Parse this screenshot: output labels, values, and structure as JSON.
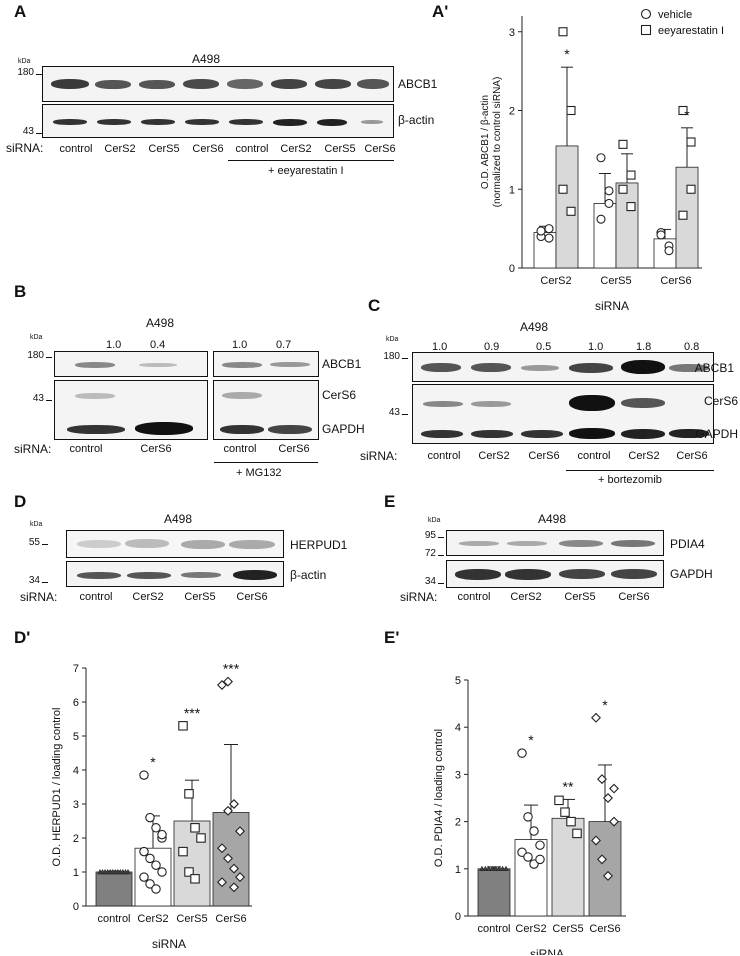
{
  "panels": {
    "A": {
      "label": "A",
      "cell": "A498",
      "kda": "kDa",
      "markers": [
        "180",
        "43"
      ],
      "proteins": [
        "ABCB1",
        "β-actin"
      ],
      "sirna_label": "siRNA:",
      "lanes": [
        "control",
        "CerS2",
        "CerS5",
        "CerS6",
        "control",
        "CerS2",
        "CerS5",
        "CerS6"
      ],
      "treatment": "+ eeyarestatin I"
    },
    "B": {
      "label": "B",
      "cell": "A498",
      "kda": "kDa",
      "markers": [
        "180",
        "43"
      ],
      "quant": [
        "1.0",
        "0.4",
        "1.0",
        "0.7"
      ],
      "proteins": [
        "ABCB1",
        "CerS6",
        "GAPDH"
      ],
      "sirna_label": "siRNA:",
      "lanes": [
        "control",
        "CerS6",
        "control",
        "CerS6"
      ],
      "treatment": "+ MG132"
    },
    "C": {
      "label": "C",
      "cell": "A498",
      "kda": "kDa",
      "markers": [
        "180",
        "43"
      ],
      "quant": [
        "1.0",
        "0.9",
        "0.5",
        "1.0",
        "1.8",
        "0.8"
      ],
      "proteins": [
        "ABCB1",
        "CerS6",
        "GAPDH"
      ],
      "sirna_label": "siRNA:",
      "lanes": [
        "control",
        "CerS2",
        "CerS6",
        "control",
        "CerS2",
        "CerS6"
      ],
      "treatment": "+ bortezomib"
    },
    "D": {
      "label": "D",
      "cell": "A498",
      "kda": "kDa",
      "markers": [
        "55",
        "34"
      ],
      "proteins": [
        "HERPUD1",
        "β-actin"
      ],
      "sirna_label": "siRNA:",
      "lanes": [
        "control",
        "CerS2",
        "CerS5",
        "CerS6"
      ]
    },
    "E": {
      "label": "E",
      "cell": "A498",
      "kda": "kDa",
      "markers": [
        "95",
        "72",
        "34"
      ],
      "proteins": [
        "PDIA4",
        "GAPDH"
      ],
      "sirna_label": "siRNA:",
      "lanes": [
        "control",
        "CerS2",
        "CerS5",
        "CerS6"
      ]
    },
    "A_prime": {
      "label": "A'"
    },
    "D_prime": {
      "label": "D'"
    },
    "E_prime": {
      "label": "E'"
    }
  },
  "chart_data": [
    {
      "id": "A_prime",
      "type": "bar",
      "categories": [
        "CerS2",
        "CerS5",
        "CerS6"
      ],
      "series": [
        {
          "name": "vehicle",
          "marker": "circle",
          "values": [
            0.45,
            0.82,
            0.37
          ],
          "error": [
            0.08,
            0.38,
            0.12
          ],
          "points": [
            [
              0.4,
              0.5,
              0.47,
              0.38
            ],
            [
              0.62,
              0.98,
              1.4,
              0.82
            ],
            [
              0.45,
              0.28,
              0.42,
              0.22
            ]
          ],
          "fill": "#ffffff"
        },
        {
          "name": "eeyarestatin I",
          "marker": "square",
          "values": [
            1.55,
            1.08,
            1.28
          ],
          "error": [
            1.0,
            0.37,
            0.5
          ],
          "points": [
            [
              3.0,
              2.0,
              1.0,
              0.72
            ],
            [
              1.57,
              1.18,
              1.0,
              0.78
            ],
            [
              2.0,
              1.0,
              0.67,
              1.6
            ]
          ],
          "fill": "#d9d9d9"
        }
      ],
      "significance": [
        "*",
        "",
        "*"
      ],
      "xlabel": "siRNA",
      "ylabel": "O.D. ABCB1 / β-actin",
      "ylabel2": "(normalized to control siRNA)",
      "yticks": [
        "0",
        "1",
        "2",
        "3"
      ],
      "ylim": [
        0,
        3.2
      ]
    },
    {
      "id": "D_prime",
      "type": "bar",
      "categories": [
        "control",
        "CerS2",
        "CerS5",
        "CerS6"
      ],
      "values": [
        1.0,
        1.7,
        2.5,
        2.75
      ],
      "error": [
        0.03,
        0.95,
        1.2,
        2.0
      ],
      "fills": [
        "#808080",
        "#ffffff",
        "#d9d9d9",
        "#a6a6a6"
      ],
      "markers": [
        "triangle",
        "circle",
        "square",
        "diamond"
      ],
      "points": [
        [
          1,
          1,
          1,
          1,
          1,
          1,
          1,
          1,
          1,
          1,
          1,
          1
        ],
        [
          3.85,
          2.6,
          2.3,
          2.0,
          1.6,
          1.4,
          1.2,
          1.0,
          0.85,
          0.65,
          0.5,
          2.1
        ],
        [
          5.3,
          3.3,
          2.3,
          2.0,
          1.6,
          1.0,
          0.8
        ],
        [
          6.5,
          6.6,
          3.0,
          2.2,
          1.7,
          1.4,
          1.1,
          0.85,
          0.7,
          2.8,
          0.55
        ]
      ],
      "significance": [
        "",
        "*",
        "***",
        "***"
      ],
      "xlabel": "siRNA",
      "ylabel": "O.D. HERPUD1 / loading control",
      "yticks": [
        "0",
        "1",
        "2",
        "3",
        "4",
        "5",
        "6",
        "7"
      ],
      "ylim": [
        0,
        7
      ]
    },
    {
      "id": "E_prime",
      "type": "bar",
      "categories": [
        "control",
        "CerS2",
        "CerS5",
        "CerS6"
      ],
      "values": [
        1.0,
        1.62,
        2.07,
        2.0
      ],
      "error": [
        0.04,
        0.73,
        0.4,
        1.2
      ],
      "fills": [
        "#808080",
        "#ffffff",
        "#d9d9d9",
        "#a6a6a6"
      ],
      "markers": [
        "triangle",
        "circle",
        "square",
        "diamond"
      ],
      "points": [
        [
          1,
          1,
          1,
          1,
          1,
          1,
          1,
          1
        ],
        [
          3.45,
          2.1,
          1.8,
          1.5,
          1.35,
          1.25,
          1.1,
          1.2
        ],
        [
          2.45,
          2.2,
          2.0,
          1.75
        ],
        [
          4.2,
          2.9,
          2.5,
          2.0,
          1.6,
          1.2,
          0.85,
          2.7
        ]
      ],
      "significance": [
        "",
        "*",
        "**",
        "*"
      ],
      "xlabel": "siRNA",
      "ylabel": "O.D. PDIA4 / loading control",
      "yticks": [
        "0",
        "1",
        "2",
        "3",
        "4",
        "5"
      ],
      "ylim": [
        0,
        5
      ]
    }
  ]
}
